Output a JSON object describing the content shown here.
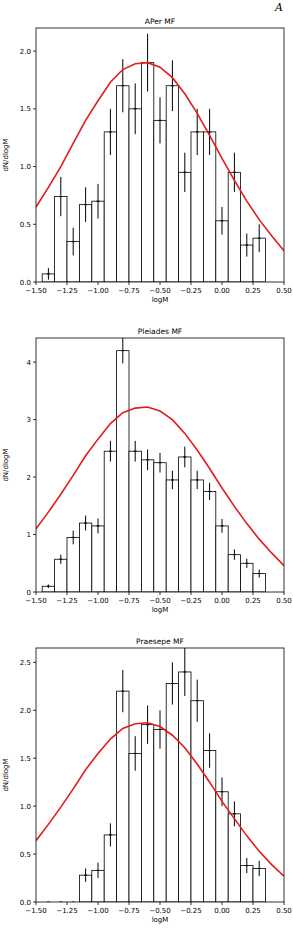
{
  "page": {
    "corner_text": "A"
  },
  "chart_data": [
    {
      "type": "histogram",
      "title": "APer MF",
      "x_label": "logM",
      "y_label": "dN/dlogM",
      "bins": [
        -1.45,
        -1.35,
        -1.25,
        -1.15,
        -1.05,
        -0.95,
        -0.85,
        -0.75,
        -0.65,
        -0.55,
        -0.45,
        -0.35,
        -0.25,
        -0.15,
        -0.05,
        0.05,
        0.15,
        0.25,
        0.35
      ],
      "values": [
        0.07,
        0.74,
        0.35,
        0.67,
        0.7,
        1.3,
        1.7,
        1.5,
        1.9,
        1.4,
        1.7,
        0.95,
        1.3,
        1.3,
        0.53,
        0.95,
        0.32,
        0.38
      ],
      "errors": [
        0.05,
        0.17,
        0.12,
        0.15,
        0.15,
        0.2,
        0.23,
        0.22,
        0.25,
        0.2,
        0.22,
        0.17,
        0.2,
        0.2,
        0.12,
        0.17,
        0.1,
        0.12
      ],
      "color": "#ffffff",
      "curve": {
        "type": "line",
        "color": "#e41a1c",
        "x": [
          -1.5,
          -1.4,
          -1.3,
          -1.2,
          -1.1,
          -1.0,
          -0.9,
          -0.8,
          -0.7,
          -0.6,
          -0.5,
          -0.4,
          -0.3,
          -0.2,
          -0.1,
          0.0,
          0.1,
          0.2,
          0.3,
          0.4,
          0.5
        ],
        "values": [
          0.65,
          0.82,
          1.0,
          1.2,
          1.4,
          1.57,
          1.73,
          1.84,
          1.89,
          1.9,
          1.86,
          1.77,
          1.63,
          1.46,
          1.27,
          1.07,
          0.88,
          0.7,
          0.54,
          0.4,
          0.27
        ]
      },
      "xlim": [
        -1.5,
        0.5
      ],
      "xticks": [
        {
          "value": -1.5,
          "label": "−1.50"
        },
        {
          "value": -1.25,
          "label": "−1.25"
        },
        {
          "value": -1.0,
          "label": "−1.00"
        },
        {
          "value": -0.75,
          "label": "−0.75"
        },
        {
          "value": -0.5,
          "label": "−0.50"
        },
        {
          "value": -0.25,
          "label": "−0.25"
        },
        {
          "value": 0,
          "label": "0.00"
        },
        {
          "value": 0.25,
          "label": "0.25"
        },
        {
          "value": 0.5,
          "label": "0.50"
        }
      ],
      "ylim": [
        0,
        2.2
      ],
      "yticks": [
        {
          "value": 0,
          "label": "0.0"
        },
        {
          "value": 0.5,
          "label": "0.5"
        },
        {
          "value": 1,
          "label": "1.0"
        },
        {
          "value": 1.5,
          "label": "1.5"
        },
        {
          "value": 2,
          "label": "2.0"
        }
      ],
      "grid": false
    },
    {
      "type": "histogram",
      "title": "Pleiades MF",
      "x_label": "logM",
      "y_label": "dN/dlogM",
      "bins": [
        -1.45,
        -1.35,
        -1.25,
        -1.15,
        -1.05,
        -0.95,
        -0.85,
        -0.75,
        -0.65,
        -0.55,
        -0.45,
        -0.35,
        -0.25,
        -0.15,
        -0.05,
        0.05,
        0.15,
        0.25,
        0.35
      ],
      "values": [
        0.1,
        0.57,
        0.95,
        1.2,
        1.15,
        2.45,
        4.2,
        2.45,
        2.3,
        2.25,
        1.95,
        2.35,
        1.95,
        1.75,
        1.15,
        0.65,
        0.5,
        0.32
      ],
      "errors": [
        0.03,
        0.08,
        0.12,
        0.13,
        0.13,
        0.18,
        0.22,
        0.18,
        0.18,
        0.17,
        0.16,
        0.18,
        0.16,
        0.15,
        0.12,
        0.09,
        0.08,
        0.07
      ],
      "color": "#ffffff",
      "curve": {
        "type": "line",
        "color": "#e41a1c",
        "x": [
          -1.5,
          -1.4,
          -1.3,
          -1.2,
          -1.1,
          -1.0,
          -0.9,
          -0.8,
          -0.7,
          -0.6,
          -0.5,
          -0.4,
          -0.3,
          -0.2,
          -0.1,
          0.0,
          0.1,
          0.2,
          0.3,
          0.4,
          0.5
        ],
        "values": [
          1.1,
          1.39,
          1.7,
          2.03,
          2.37,
          2.66,
          2.93,
          3.12,
          3.2,
          3.22,
          3.15,
          3.0,
          2.76,
          2.47,
          2.15,
          1.81,
          1.49,
          1.19,
          0.92,
          0.68,
          0.46
        ]
      },
      "xlim": [
        -1.5,
        0.5
      ],
      "xticks": [
        {
          "value": -1.5,
          "label": "−1.50"
        },
        {
          "value": -1.25,
          "label": "−1.25"
        },
        {
          "value": -1.0,
          "label": "−1.00"
        },
        {
          "value": -0.75,
          "label": "−0.75"
        },
        {
          "value": -0.5,
          "label": "−0.50"
        },
        {
          "value": -0.25,
          "label": "−0.25"
        },
        {
          "value": 0,
          "label": "0.00"
        },
        {
          "value": 0.25,
          "label": "0.25"
        },
        {
          "value": 0.5,
          "label": "0.50"
        }
      ],
      "ylim": [
        0,
        4.42
      ],
      "yticks": [
        0,
        1,
        2,
        3,
        4
      ],
      "grid": false
    },
    {
      "type": "histogram",
      "title": "Praesepe MF",
      "x_label": "logM",
      "y_label": "dN/dlogM",
      "bins": [
        -1.45,
        -1.35,
        -1.25,
        -1.15,
        -1.05,
        -0.95,
        -0.85,
        -0.75,
        -0.65,
        -0.55,
        -0.45,
        -0.35,
        -0.25,
        -0.15,
        -0.05,
        0.05,
        0.15,
        0.25,
        0.35
      ],
      "values": [
        0,
        0,
        0,
        0.28,
        0.33,
        0.7,
        2.2,
        1.55,
        1.85,
        1.8,
        2.28,
        2.4,
        2.1,
        1.58,
        1.15,
        0.92,
        0.38,
        0.35
      ],
      "errors": [
        0,
        0,
        0,
        0.07,
        0.08,
        0.12,
        0.22,
        0.18,
        0.2,
        0.2,
        0.22,
        0.25,
        0.22,
        0.18,
        0.15,
        0.13,
        0.08,
        0.08
      ],
      "color": "#ffffff",
      "curve": {
        "type": "line",
        "color": "#e41a1c",
        "x": [
          -1.5,
          -1.4,
          -1.3,
          -1.2,
          -1.1,
          -1.0,
          -0.9,
          -0.8,
          -0.7,
          -0.6,
          -0.5,
          -0.4,
          -0.3,
          -0.2,
          -0.1,
          0.0,
          0.1,
          0.2,
          0.3,
          0.4,
          0.5
        ],
        "values": [
          0.64,
          0.81,
          0.99,
          1.18,
          1.38,
          1.55,
          1.7,
          1.81,
          1.86,
          1.87,
          1.83,
          1.74,
          1.61,
          1.44,
          1.25,
          1.05,
          0.87,
          0.69,
          0.53,
          0.39,
          0.27
        ]
      },
      "xlim": [
        -1.5,
        0.5
      ],
      "xticks": [
        {
          "value": -1.5,
          "label": "−1.50"
        },
        {
          "value": -1.25,
          "label": "−1.25"
        },
        {
          "value": -1.0,
          "label": "−1.00"
        },
        {
          "value": -0.75,
          "label": "−0.75"
        },
        {
          "value": -0.5,
          "label": "−0.50"
        },
        {
          "value": -0.25,
          "label": "−0.25"
        },
        {
          "value": 0,
          "label": "0.00"
        },
        {
          "value": 0.25,
          "label": "0.25"
        },
        {
          "value": 0.5,
          "label": "0.50"
        }
      ],
      "ylim": [
        0,
        2.65
      ],
      "yticks": [
        {
          "value": 0,
          "label": "0.0"
        },
        {
          "value": 0.5,
          "label": "0.5"
        },
        {
          "value": 1,
          "label": "1.0"
        },
        {
          "value": 1.5,
          "label": "1.5"
        },
        {
          "value": 2,
          "label": "2.0"
        },
        {
          "value": 2.5,
          "label": "2.5"
        }
      ],
      "grid": false
    }
  ]
}
